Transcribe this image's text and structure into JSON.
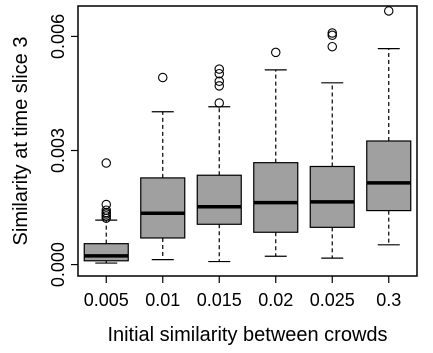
{
  "chart_data": {
    "type": "boxplot",
    "xlabel": "Initial similarity between crowds",
    "ylabel": "Similarity at time slice 3",
    "ylim": [
      -0.0003,
      0.0068
    ],
    "yticks": [
      {
        "value": 0.0,
        "label": "0.000"
      },
      {
        "value": 0.003,
        "label": "0.003"
      },
      {
        "value": 0.006,
        "label": "0.006"
      }
    ],
    "grid": false,
    "legend": "none",
    "box_color": "#a0a0a0",
    "median_color": "#000000",
    "categories": [
      "0.005",
      "0.01",
      "0.015",
      "0.02",
      "0.025",
      "0.3"
    ],
    "boxes": [
      {
        "category": "0.005",
        "whisker_low": 4e-05,
        "q1": 0.0001,
        "median": 0.00023,
        "q3": 0.00055,
        "whisker_high": 0.00117,
        "outliers": [
          0.00122,
          0.00128,
          0.00133,
          0.00137,
          0.00143,
          0.00158,
          0.00267
        ]
      },
      {
        "category": "0.01",
        "whisker_low": 0.00013,
        "q1": 0.0007,
        "median": 0.00135,
        "q3": 0.00228,
        "whisker_high": 0.00402,
        "outliers": [
          0.00492
        ]
      },
      {
        "category": "0.015",
        "whisker_low": 8e-05,
        "q1": 0.00106,
        "median": 0.00152,
        "q3": 0.00235,
        "whisker_high": 0.00415,
        "outliers": [
          0.00425,
          0.0047,
          0.00482,
          0.00502,
          0.00514
        ]
      },
      {
        "category": "0.02",
        "whisker_low": 0.00022,
        "q1": 0.00085,
        "median": 0.00163,
        "q3": 0.00268,
        "whisker_high": 0.00512,
        "outliers": [
          0.00558
        ]
      },
      {
        "category": "0.025",
        "whisker_low": 0.00017,
        "q1": 0.00098,
        "median": 0.00165,
        "q3": 0.00258,
        "whisker_high": 0.00478,
        "outliers": [
          0.00573,
          0.00603,
          0.00609
        ]
      },
      {
        "category": "0.3",
        "whisker_low": 0.00052,
        "q1": 0.00142,
        "median": 0.00215,
        "q3": 0.00325,
        "whisker_high": 0.00568,
        "outliers": [
          0.00667
        ]
      }
    ]
  }
}
